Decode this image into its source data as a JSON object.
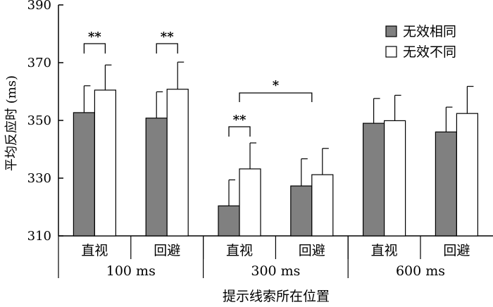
{
  "chart_data": {
    "type": "bar",
    "title": "",
    "xlabel": "提示线索所在位置",
    "ylabel": "平均反应时 (ms)",
    "ylim": [
      310,
      390
    ],
    "yticks": [
      310,
      330,
      350,
      370,
      390
    ],
    "grid": false,
    "legend_position": "top-right",
    "categories": [
      "直视",
      "回避",
      "直视",
      "回避",
      "直视",
      "回避"
    ],
    "groups": [
      {
        "label": "100 ms",
        "categories": [
          "直视",
          "回避"
        ]
      },
      {
        "label": "300 ms",
        "categories": [
          "直视",
          "回避"
        ]
      },
      {
        "label": "600 ms",
        "categories": [
          "直视",
          "回避"
        ]
      }
    ],
    "series": [
      {
        "name": "无效相同",
        "color": "#808080",
        "values": [
          352.7,
          350.8,
          320.4,
          327.3,
          349.0,
          346.0
        ],
        "errors": [
          9.3,
          9.1,
          9.0,
          9.4,
          8.6,
          8.6
        ]
      },
      {
        "name": "无效不同",
        "color": "#ffffff",
        "values": [
          360.5,
          360.8,
          333.2,
          331.2,
          349.9,
          352.4
        ],
        "errors": [
          8.7,
          9.4,
          9.0,
          9.1,
          8.8,
          9.4
        ]
      }
    ],
    "annotations": [
      {
        "text": "**",
        "scope": "100 ms 直视: 无效相同 vs 无效不同"
      },
      {
        "text": "**",
        "scope": "100 ms 回避: 无效相同 vs 无效不同"
      },
      {
        "text": "**",
        "scope": "300 ms 直视: 无效相同 vs 无效不同"
      },
      {
        "text": "*",
        "scope": "300 ms: 直视 vs 回避"
      }
    ]
  }
}
